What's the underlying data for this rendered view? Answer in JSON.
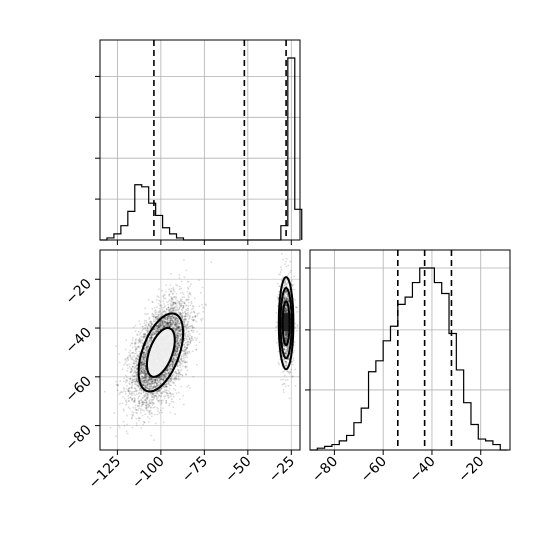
{
  "chart_data": {
    "type": "corner",
    "parameters": [
      {
        "range": [
          -135,
          -20
        ],
        "ticks": [
          -125,
          -100,
          -75,
          -50,
          -25
        ],
        "tick_labels": [
          "−125",
          "−100",
          "−75",
          "−50",
          "−25"
        ],
        "quantile_lines": [
          -104,
          -52,
          -28
        ]
      },
      {
        "range": [
          -90,
          -8
        ],
        "ticks": [
          -80,
          -60,
          -40,
          -20
        ],
        "tick_labels": [
          "−80",
          "−60",
          "−40",
          "−20"
        ],
        "quantile_lines": [
          -54,
          -43,
          -32
        ]
      }
    ],
    "hist_top": {
      "bin_edges": [
        -135,
        -131,
        -127,
        -123,
        -119,
        -115,
        -111,
        -107,
        -103,
        -99,
        -95,
        -91,
        -87,
        -83,
        -79,
        -75,
        -71,
        -67,
        -63,
        -59,
        -55,
        -51,
        -47,
        -43,
        -39,
        -35,
        -31,
        -27,
        -23,
        -19
      ],
      "counts": [
        0,
        1,
        3,
        7,
        14,
        27,
        26,
        18,
        12,
        6,
        3,
        1,
        0,
        0,
        0,
        0,
        0,
        0,
        0,
        0,
        0,
        0,
        0,
        0,
        0,
        0,
        7,
        89,
        15,
        0
      ]
    },
    "hist_right": {
      "bin_edges": [
        -90,
        -87,
        -84,
        -81,
        -78,
        -75,
        -72,
        -69,
        -66,
        -63,
        -60,
        -57,
        -54,
        -51,
        -48,
        -45,
        -42,
        -39,
        -36,
        -33,
        -30,
        -27,
        -24,
        -21,
        -18,
        -15,
        -12,
        -9
      ],
      "counts": [
        0,
        1,
        2,
        3,
        5,
        8,
        15,
        23,
        43,
        49,
        60,
        68,
        80,
        84,
        92,
        100,
        100,
        92,
        86,
        64,
        44,
        26,
        14,
        6,
        5,
        3,
        0
      ]
    },
    "clusters": [
      {
        "cx": -100,
        "cy": -50,
        "sx": 8,
        "sy": 10,
        "rho": 0.5,
        "contours": [
          {
            "rx": 1.0,
            "ry": 1.0
          },
          {
            "rx": 1.6,
            "ry": 1.6
          }
        ]
      },
      {
        "cx": -28,
        "cy": -38,
        "sx": 2.0,
        "sy": 9,
        "rho": 0.0,
        "contours": [
          {
            "rx": 1.0,
            "ry": 1.0
          },
          {
            "rx": 1.6,
            "ry": 1.6
          },
          {
            "rx": 2.1,
            "ry": 2.1
          }
        ]
      }
    ],
    "grid": true
  }
}
